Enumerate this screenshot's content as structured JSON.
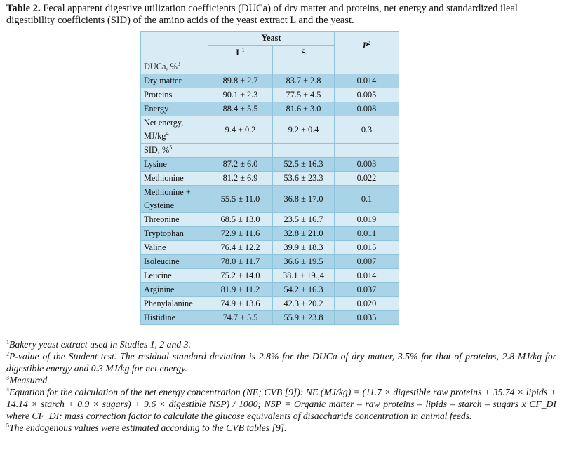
{
  "caption": {
    "label": "Table 2.",
    "text": " Fecal apparent digestive utilization coefficients (DUCa) of dry matter and proteins, net energy and standardized ileal digestibility coefficients (SID) of the amino acids of the yeast extract L and the yeast."
  },
  "table": {
    "group_header": "Yeast",
    "col_L": "L",
    "col_L_sup": "1",
    "col_S": "S",
    "col_P": "P",
    "col_P_sup": "2",
    "sections": [
      {
        "label": "DUCa, %",
        "label_sup": "3",
        "rows": [
          {
            "label": "Dry matter",
            "L": "89.8 ± 2.7",
            "S": "83.7 ± 2.8",
            "P": "0.014"
          },
          {
            "label": "Proteins",
            "L": "90.1 ± 2.3",
            "S": "77.5 ± 4.5",
            "P": "0.005"
          },
          {
            "label": "Energy",
            "L": "88.4 ± 5.5",
            "S": "81.6 ± 3.0",
            "P": "0.008"
          },
          {
            "label": "Net energy, MJ/kg",
            "label_sup": "4",
            "L": "9.4 ± 0.2",
            "S": "9.2 ± 0.4",
            "P": "0.3"
          }
        ]
      },
      {
        "label": "SID, %",
        "label_sup": "5",
        "rows": [
          {
            "label": "Lysine",
            "L": "87.2 ± 6.0",
            "S": "52.5 ± 16.3",
            "P": "0.003"
          },
          {
            "label": "Methionine",
            "L": "81.2 ± 6.9",
            "S": "53.6 ± 23.3",
            "P": "0.022"
          },
          {
            "label": "Methionine + Cysteine",
            "L": "55.5 ± 11.0",
            "S": "36.8 ± 17.0",
            "P": "0.1"
          },
          {
            "label": "Threonine",
            "L": "68.5 ± 13.0",
            "S": "23.5 ± 16.7",
            "P": "0.019"
          },
          {
            "label": "Tryptophan",
            "L": "72.9 ± 11.6",
            "S": "32.8 ± 21.0",
            "P": "0.011"
          },
          {
            "label": "Valine",
            "L": "76.4 ± 12.2",
            "S": "39.9 ± 18.3",
            "P": "0.015"
          },
          {
            "label": "Isoleucine",
            "L": "78.0 ± 11.7",
            "S": "36.6 ± 19.5",
            "P": "0.007"
          },
          {
            "label": "Leucine",
            "L": "75.2 ± 14.0",
            "S": "38.1 ± 19.,4",
            "P": "0.014"
          },
          {
            "label": "Arginine",
            "L": "81.9 ± 11.2",
            "S": "54.2 ± 16.3",
            "P": "0.037"
          },
          {
            "label": "Phenylalanine",
            "L": "74.9 ± 13.6",
            "S": "42.3 ± 20.2",
            "P": "0.020"
          },
          {
            "label": "Histidine",
            "L": "74.7 ± 5.5",
            "S": "55.9 ± 23.8",
            "P": "0.035"
          }
        ]
      }
    ]
  },
  "footnotes": [
    {
      "mark": "1",
      "text": "Bakery yeast extract used in Studies 1, 2 and 3."
    },
    {
      "mark": "2",
      "text": "P-value of the Student test. The residual standard deviation is 2.8% for the DUCa of dry matter, 3.5% for that of proteins, 2.8 MJ/kg for digestible energy and 0.3 MJ/kg for net energy."
    },
    {
      "mark": "3",
      "text": "Measured."
    },
    {
      "mark": "4",
      "text": "Equation for the calculation of the net energy concentration (NE; CVB [9]): NE (MJ/kg) = (11.7 × digestible raw proteins + 35.74 × lipids + 14.14 × starch + 0.9 × sugars) + 9.6 × digestible NSP) / 1000; NSP = Organic matter – raw proteins – lipids – starch – sugars x CF_DI where CF_DI: mass correction factor to calculate the glucose equivalents of disaccharide concentration in animal feeds."
    },
    {
      "mark": "5",
      "text": "The endogenous values were estimated according to the CVB tables [9]."
    }
  ],
  "colors": {
    "header_fill": "#d9ecf5",
    "row_dark": "#a9d4e7",
    "row_light": "#d9ecf5",
    "border": "#8cc4dc"
  }
}
